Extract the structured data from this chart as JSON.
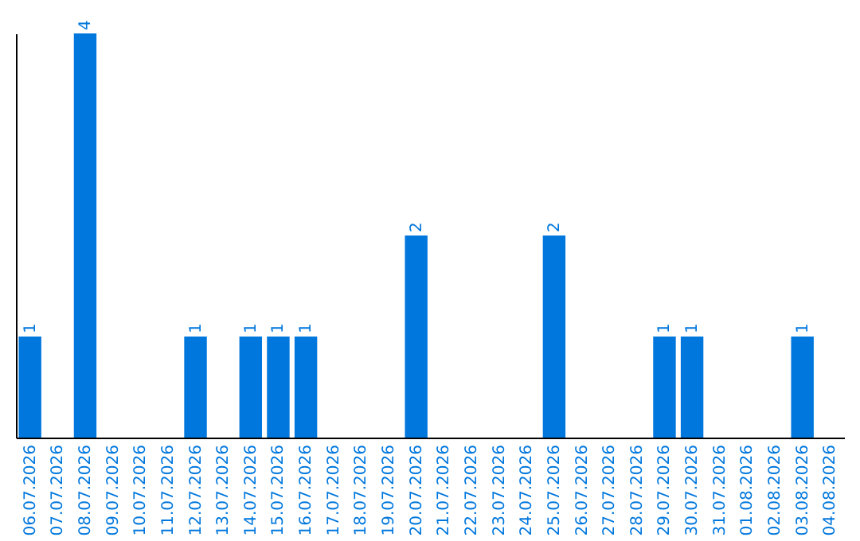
{
  "chart_data": {
    "type": "bar",
    "categories": [
      "06.07.2026",
      "07.07.2026",
      "08.07.2026",
      "09.07.2026",
      "10.07.2026",
      "11.07.2026",
      "12.07.2026",
      "13.07.2026",
      "14.07.2026",
      "15.07.2026",
      "16.07.2026",
      "17.07.2026",
      "18.07.2026",
      "19.07.2026",
      "20.07.2026",
      "21.07.2026",
      "22.07.2026",
      "23.07.2026",
      "24.07.2026",
      "25.07.2026",
      "26.07.2026",
      "27.07.2026",
      "28.07.2026",
      "29.07.2026",
      "30.07.2026",
      "31.07.2026",
      "01.08.2026",
      "02.08.2026",
      "03.08.2026",
      "04.08.2026"
    ],
    "values": [
      1,
      0,
      4,
      0,
      0,
      0,
      1,
      0,
      1,
      1,
      1,
      0,
      0,
      0,
      2,
      0,
      0,
      0,
      0,
      2,
      0,
      0,
      0,
      1,
      1,
      0,
      0,
      0,
      1,
      0
    ],
    "value_labels": [
      "1",
      null,
      "4",
      null,
      null,
      null,
      "1",
      null,
      "1",
      "1",
      "1",
      null,
      null,
      null,
      "2",
      null,
      null,
      null,
      null,
      "2",
      null,
      null,
      null,
      "1",
      "1",
      null,
      null,
      null,
      "1",
      null
    ],
    "color": "#0077dd",
    "tick_labels": "x"
  }
}
